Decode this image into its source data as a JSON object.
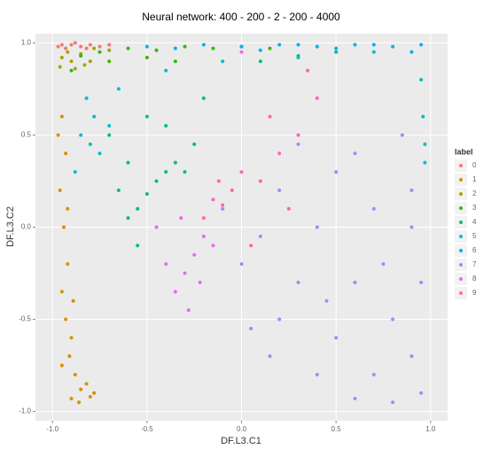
{
  "chart_data": {
    "type": "scatter",
    "title": "Neural network: 400 - 200 - 2 - 200 - 4000",
    "x_label": "DF.L3.C1",
    "y_label": "DF.L3.C2",
    "legend_title": "label",
    "xlim": [
      -1.09,
      1.09
    ],
    "ylim": [
      -1.05,
      1.05
    ],
    "xticks": [
      {
        "value": -1,
        "label": "-1.0"
      },
      {
        "value": -0.5,
        "label": "-0.5"
      },
      {
        "value": 0,
        "label": "0.0"
      },
      {
        "value": 0.5,
        "label": "0.5"
      },
      {
        "value": 1,
        "label": "1.0"
      }
    ],
    "yticks": [
      {
        "value": -1,
        "label": "-1.0"
      },
      {
        "value": -0.5,
        "label": "-0.5"
      },
      {
        "value": 0,
        "label": "0.0"
      },
      {
        "value": 0.5,
        "label": "0.5"
      },
      {
        "value": 1,
        "label": "1.0"
      }
    ],
    "grid": true,
    "series": [
      {
        "name": "0",
        "color": "#F8766D",
        "x": [
          -0.95,
          -0.9,
          -0.85,
          -0.8,
          -0.75,
          -0.7,
          -0.93,
          -0.88,
          -0.97,
          -0.82
        ],
        "values": [
          0.99,
          0.99,
          0.98,
          0.99,
          0.98,
          0.99,
          0.97,
          1.0,
          0.98,
          0.97
        ]
      },
      {
        "name": "1",
        "color": "#D89000",
        "x": [
          -0.95,
          -0.93,
          -0.96,
          -0.94,
          -0.92,
          -0.95,
          -0.93,
          -0.9,
          -0.91,
          -0.88,
          -0.85,
          -0.8,
          -0.78,
          -0.95,
          -0.9,
          -0.86,
          -0.82,
          -0.92,
          -0.97,
          -0.89
        ],
        "values": [
          0.6,
          0.4,
          0.2,
          0.0,
          -0.2,
          -0.35,
          -0.5,
          -0.6,
          -0.7,
          -0.8,
          -0.88,
          -0.92,
          -0.9,
          -0.75,
          -0.93,
          -0.95,
          -0.85,
          0.1,
          0.5,
          -0.4
        ]
      },
      {
        "name": "2",
        "color": "#A3A500",
        "x": [
          -0.95,
          -0.9,
          -0.85,
          -0.8,
          -0.88,
          -0.92,
          -0.78,
          -0.83,
          -0.7,
          -0.96
        ],
        "values": [
          0.92,
          0.9,
          0.94,
          0.9,
          0.86,
          0.95,
          0.97,
          0.88,
          0.96,
          0.87
        ]
      },
      {
        "name": "3",
        "color": "#39B600",
        "x": [
          -0.85,
          -0.75,
          -0.6,
          -0.45,
          -0.3,
          -0.15,
          0.0,
          -0.7,
          -0.5,
          -0.9,
          0.15,
          -0.35
        ],
        "values": [
          0.93,
          0.95,
          0.97,
          0.96,
          0.98,
          0.97,
          0.98,
          0.9,
          0.92,
          0.85,
          0.97,
          0.9
        ]
      },
      {
        "name": "4",
        "color": "#00BF7D",
        "x": [
          -0.6,
          -0.55,
          -0.5,
          -0.45,
          -0.4,
          -0.35,
          -0.3,
          -0.25,
          -0.65,
          -0.6,
          -0.7,
          -0.5,
          -0.2,
          0.1,
          0.3,
          0.5,
          -0.4,
          -0.55
        ],
        "values": [
          0.05,
          0.1,
          0.18,
          0.25,
          0.3,
          0.35,
          0.3,
          0.45,
          0.2,
          0.35,
          0.5,
          0.6,
          0.7,
          0.9,
          0.93,
          0.95,
          0.55,
          -0.1
        ]
      },
      {
        "name": "5",
        "color": "#00BFC4",
        "x": [
          -0.85,
          -0.8,
          -0.78,
          -0.75,
          -0.82,
          -0.7,
          -0.65,
          0.97,
          0.96,
          0.95,
          0.97,
          -0.4,
          -0.1,
          0.3,
          0.7,
          -0.88
        ],
        "values": [
          0.5,
          0.45,
          0.6,
          0.4,
          0.7,
          0.55,
          0.75,
          0.45,
          0.6,
          0.8,
          0.35,
          0.85,
          0.9,
          0.92,
          0.95,
          0.3
        ]
      },
      {
        "name": "6",
        "color": "#00B0F6",
        "x": [
          -0.2,
          0.0,
          0.2,
          0.4,
          0.6,
          0.8,
          0.95,
          -0.5,
          0.1,
          0.5,
          0.9,
          -0.35,
          0.3,
          0.7
        ],
        "values": [
          0.99,
          0.98,
          0.99,
          0.98,
          0.99,
          0.98,
          0.99,
          0.98,
          0.96,
          0.97,
          0.95,
          0.97,
          0.99,
          0.99
        ]
      },
      {
        "name": "7",
        "color": "#9590FF",
        "x": [
          0.0,
          0.2,
          0.4,
          0.6,
          0.8,
          0.95,
          0.1,
          0.3,
          0.5,
          0.7,
          0.9,
          0.2,
          0.4,
          0.6,
          0.8,
          0.95,
          0.5,
          0.7,
          0.9,
          0.85,
          -0.1,
          0.3,
          0.6,
          0.9,
          0.75,
          0.45,
          0.15,
          0.05
        ],
        "values": [
          -0.2,
          -0.5,
          -0.8,
          -0.93,
          -0.95,
          -0.9,
          -0.05,
          -0.3,
          -0.6,
          -0.8,
          -0.7,
          0.2,
          0.0,
          -0.3,
          -0.5,
          -0.3,
          0.3,
          0.1,
          0.2,
          0.5,
          0.1,
          0.45,
          0.4,
          0.0,
          -0.2,
          -0.4,
          -0.7,
          -0.55
        ]
      },
      {
        "name": "8",
        "color": "#E76BF3",
        "x": [
          -0.2,
          -0.25,
          -0.3,
          -0.35,
          -0.28,
          -0.22,
          -0.15,
          -0.4,
          0.0,
          -0.32,
          -0.45
        ],
        "values": [
          -0.05,
          -0.15,
          -0.25,
          -0.35,
          -0.45,
          -0.3,
          -0.1,
          -0.2,
          0.95,
          0.05,
          0.0
        ]
      },
      {
        "name": "9",
        "color": "#FF62BC",
        "x": [
          -0.15,
          -0.1,
          -0.05,
          0.0,
          0.1,
          0.2,
          0.3,
          -0.2,
          0.15,
          0.4,
          0.25,
          -0.12,
          0.05,
          0.35
        ],
        "values": [
          0.15,
          0.12,
          0.2,
          0.3,
          0.25,
          0.4,
          0.5,
          0.05,
          0.6,
          0.7,
          0.1,
          0.25,
          -0.1,
          0.85
        ]
      }
    ]
  }
}
